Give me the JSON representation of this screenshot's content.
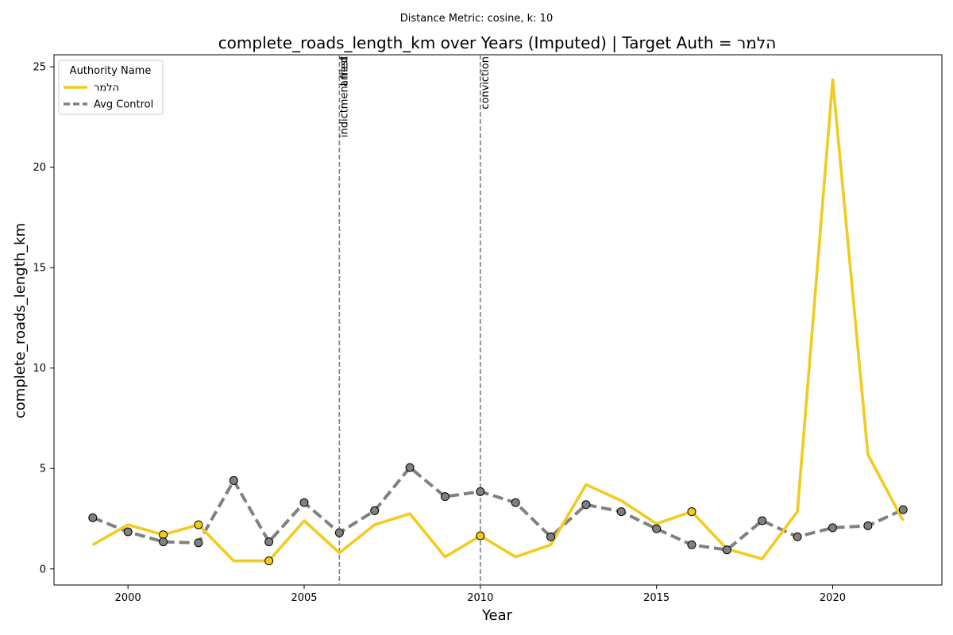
{
  "suptitle": "Distance Metric: cosine, k: 10",
  "chart_data": {
    "type": "line",
    "title": "complete_roads_length_km over Years (Imputed) | Target Auth = הלמר",
    "xlabel": "Year",
    "ylabel": "complete_roads_length_km",
    "xlim": [
      1997.9,
      2023.1
    ],
    "ylim": [
      -0.8,
      25.6
    ],
    "xticks": [
      2000,
      2005,
      2010,
      2015,
      2020
    ],
    "yticks": [
      0,
      5,
      10,
      15,
      20,
      25
    ],
    "grid": false,
    "legend": {
      "title": "Authority Name",
      "placement": "top-left"
    },
    "x": [
      1999,
      2000,
      2001,
      2002,
      2003,
      2004,
      2005,
      2006,
      2007,
      2008,
      2009,
      2010,
      2011,
      2012,
      2013,
      2014,
      2015,
      2016,
      2017,
      2018,
      2019,
      2020,
      2021,
      2022
    ],
    "series": [
      {
        "name": "הלמר",
        "color": "#f2cb1f",
        "style": "solid",
        "values": [
          1.2,
          2.2,
          1.7,
          2.2,
          0.4,
          0.4,
          2.4,
          0.8,
          2.2,
          2.75,
          0.6,
          1.65,
          0.6,
          1.2,
          4.2,
          3.4,
          2.25,
          2.85,
          1.0,
          0.5,
          2.85,
          24.35,
          5.7,
          2.4
        ],
        "markers": [
          2001,
          2002,
          2004,
          2010,
          2016
        ]
      },
      {
        "name": "Avg Control",
        "color": "#808080",
        "style": "dashed",
        "values": [
          2.55,
          1.85,
          1.35,
          1.3,
          4.4,
          1.35,
          3.3,
          1.8,
          2.9,
          5.05,
          3.6,
          3.85,
          3.3,
          1.6,
          3.2,
          2.85,
          2.0,
          1.2,
          0.95,
          2.4,
          1.6,
          2.05,
          2.15,
          2.95
        ],
        "markers": "all"
      }
    ],
    "events": [
      {
        "year": 2006,
        "labels": [
          "indictment filed",
          "arrest"
        ]
      },
      {
        "year": 2010,
        "labels": [
          "conviction"
        ]
      }
    ]
  }
}
